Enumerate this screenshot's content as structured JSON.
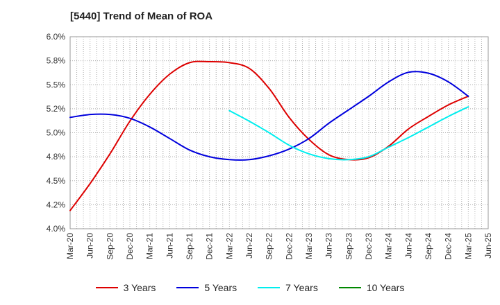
{
  "chart_data": {
    "type": "line",
    "title": "[5440]  Trend of Mean of ROA",
    "xlabel": "",
    "ylabel": "",
    "categories": [
      "Mar-20",
      "Jun-20",
      "Sep-20",
      "Dec-20",
      "Mar-21",
      "Jun-21",
      "Sep-21",
      "Dec-21",
      "Mar-22",
      "Jun-22",
      "Sep-22",
      "Dec-22",
      "Mar-23",
      "Jun-23",
      "Sep-23",
      "Dec-23",
      "Mar-24",
      "Jun-24",
      "Sep-24",
      "Dec-24",
      "Mar-25",
      "Jun-25"
    ],
    "yticks": [
      "4.0%",
      "4.2%",
      "4.5%",
      "4.8%",
      "5.0%",
      "5.2%",
      "5.5%",
      "5.8%",
      "6.0%"
    ],
    "ylim": [
      4.0,
      6.0
    ],
    "grid": true,
    "legend_position": "bottom",
    "series": [
      {
        "name": "3 Years",
        "color": "#dd0000",
        "values": [
          4.19,
          4.47,
          4.78,
          5.12,
          5.4,
          5.61,
          5.73,
          5.74,
          5.73,
          5.67,
          5.46,
          5.16,
          4.93,
          4.77,
          4.72,
          4.74,
          4.86,
          5.04,
          5.17,
          5.29,
          5.38,
          null
        ]
      },
      {
        "name": "5 Years",
        "color": "#0000dd",
        "values": [
          5.16,
          5.19,
          5.19,
          5.15,
          5.06,
          4.94,
          4.82,
          4.75,
          4.72,
          4.72,
          4.76,
          4.83,
          4.94,
          5.1,
          5.24,
          5.38,
          5.53,
          5.63,
          5.62,
          5.53,
          5.38,
          null
        ]
      },
      {
        "name": "7 Years",
        "color": "#00eeee",
        "values": [
          null,
          null,
          null,
          null,
          null,
          null,
          null,
          null,
          5.23,
          5.12,
          5.0,
          4.87,
          4.78,
          4.73,
          4.72,
          4.75,
          4.85,
          4.95,
          5.06,
          5.17,
          5.27,
          null
        ]
      },
      {
        "name": "10 Years",
        "color": "#008800",
        "values": [
          null,
          null,
          null,
          null,
          null,
          null,
          null,
          null,
          null,
          null,
          null,
          null,
          null,
          null,
          null,
          null,
          null,
          null,
          null,
          null,
          null,
          null
        ]
      }
    ]
  }
}
